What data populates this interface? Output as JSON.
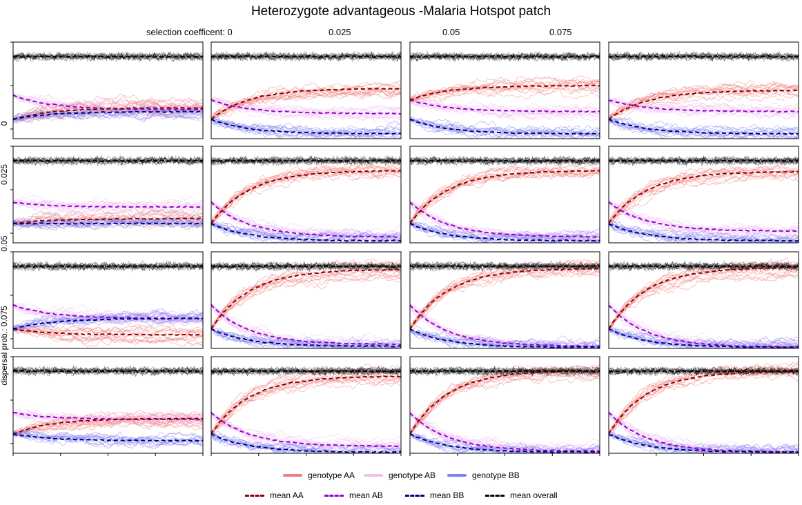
{
  "title": "Heterozygote advantageous -Malaria Hotspot patch",
  "column_labels": [
    "selection coefficent: 0",
    "0.025",
    "0.05",
    "0.075"
  ],
  "row_labels": [
    "0",
    "0.025",
    "0.05",
    "dispersal prob.: 0.075"
  ],
  "legend": {
    "lines": [
      {
        "label": "genotype AA",
        "color": "#f08080"
      },
      {
        "label": "genotype AB",
        "color": "#f0c0f0"
      },
      {
        "label": "genotype BB",
        "color": "#8080f0"
      }
    ],
    "means": [
      {
        "label": "mean AA",
        "color": "#8b0000"
      },
      {
        "label": "mean AB",
        "color": "#9400d3"
      },
      {
        "label": "mean BB",
        "color": "#000080"
      },
      {
        "label": "mean overall",
        "color": "#000000"
      }
    ]
  },
  "chart_data": {
    "type": "line",
    "layout": "grid 4x4 (rows: dispersal prob., columns: selection coefficient)",
    "selection_coefficients": [
      0,
      0.025,
      0.05,
      0.075
    ],
    "dispersal_probs": [
      0,
      0.025,
      0.05,
      0.075
    ],
    "x_range": [
      0,
      1
    ],
    "y_range": [
      0,
      1
    ],
    "grid": false,
    "legend_position": "bottom",
    "panels": [
      {
        "row": 0,
        "col": 0,
        "mean_overall": 0.85,
        "AA": [
          0.2,
          0.32
        ],
        "AB": [
          0.45,
          0.3
        ],
        "BB": [
          0.2,
          0.28
        ]
      },
      {
        "row": 0,
        "col": 1,
        "mean_overall": 0.85,
        "AA": [
          0.2,
          0.52
        ],
        "AB": [
          0.4,
          0.26
        ],
        "BB": [
          0.2,
          0.05
        ]
      },
      {
        "row": 0,
        "col": 2,
        "mean_overall": 0.85,
        "AA": [
          0.4,
          0.55
        ],
        "AB": [
          0.4,
          0.28
        ],
        "BB": [
          0.2,
          0.05
        ]
      },
      {
        "row": 0,
        "col": 3,
        "mean_overall": 0.85,
        "AA": [
          0.2,
          0.5
        ],
        "AB": [
          0.4,
          0.28
        ],
        "BB": [
          0.2,
          0.05
        ]
      },
      {
        "row": 1,
        "col": 0,
        "mean_overall": 0.85,
        "AA": [
          0.2,
          0.25
        ],
        "AB": [
          0.42,
          0.37
        ],
        "BB": [
          0.2,
          0.2
        ]
      },
      {
        "row": 1,
        "col": 1,
        "mean_overall": 0.85,
        "AA": [
          0.2,
          0.75
        ],
        "AB": [
          0.42,
          0.06
        ],
        "BB": [
          0.2,
          0.02
        ]
      },
      {
        "row": 1,
        "col": 2,
        "mean_overall": 0.85,
        "AA": [
          0.2,
          0.75
        ],
        "AB": [
          0.42,
          0.06
        ],
        "BB": [
          0.2,
          0.02
        ]
      },
      {
        "row": 1,
        "col": 3,
        "mean_overall": 0.85,
        "AA": [
          0.2,
          0.74
        ],
        "AB": [
          0.42,
          0.12
        ],
        "BB": [
          0.2,
          0.02
        ]
      },
      {
        "row": 2,
        "col": 0,
        "mean_overall": 0.85,
        "AA": [
          0.2,
          0.14
        ],
        "AB": [
          0.45,
          0.31
        ],
        "BB": [
          0.2,
          0.31
        ]
      },
      {
        "row": 2,
        "col": 1,
        "mean_overall": 0.85,
        "AA": [
          0.2,
          0.82
        ],
        "AB": [
          0.45,
          0.04
        ],
        "BB": [
          0.2,
          0.02
        ]
      },
      {
        "row": 2,
        "col": 2,
        "mean_overall": 0.85,
        "AA": [
          0.2,
          0.83
        ],
        "AB": [
          0.45,
          0.02
        ],
        "BB": [
          0.2,
          0.01
        ]
      },
      {
        "row": 2,
        "col": 3,
        "mean_overall": 0.85,
        "AA": [
          0.2,
          0.84
        ],
        "AB": [
          0.45,
          0.01
        ],
        "BB": [
          0.2,
          0.01
        ]
      },
      {
        "row": 3,
        "col": 0,
        "mean_overall": 0.85,
        "AA": [
          0.2,
          0.36
        ],
        "AB": [
          0.42,
          0.35
        ],
        "BB": [
          0.2,
          0.13
        ]
      },
      {
        "row": 3,
        "col": 1,
        "mean_overall": 0.85,
        "AA": [
          0.2,
          0.8
        ],
        "AB": [
          0.42,
          0.07
        ],
        "BB": [
          0.2,
          0.01
        ]
      },
      {
        "row": 3,
        "col": 2,
        "mean_overall": 0.85,
        "AA": [
          0.2,
          0.86
        ],
        "AB": [
          0.42,
          0.02
        ],
        "BB": [
          0.2,
          0.01
        ]
      },
      {
        "row": 3,
        "col": 3,
        "mean_overall": 0.85,
        "AA": [
          0.2,
          0.85
        ],
        "AB": [
          0.42,
          0.01
        ],
        "BB": [
          0.2,
          0.01
        ]
      }
    ]
  }
}
